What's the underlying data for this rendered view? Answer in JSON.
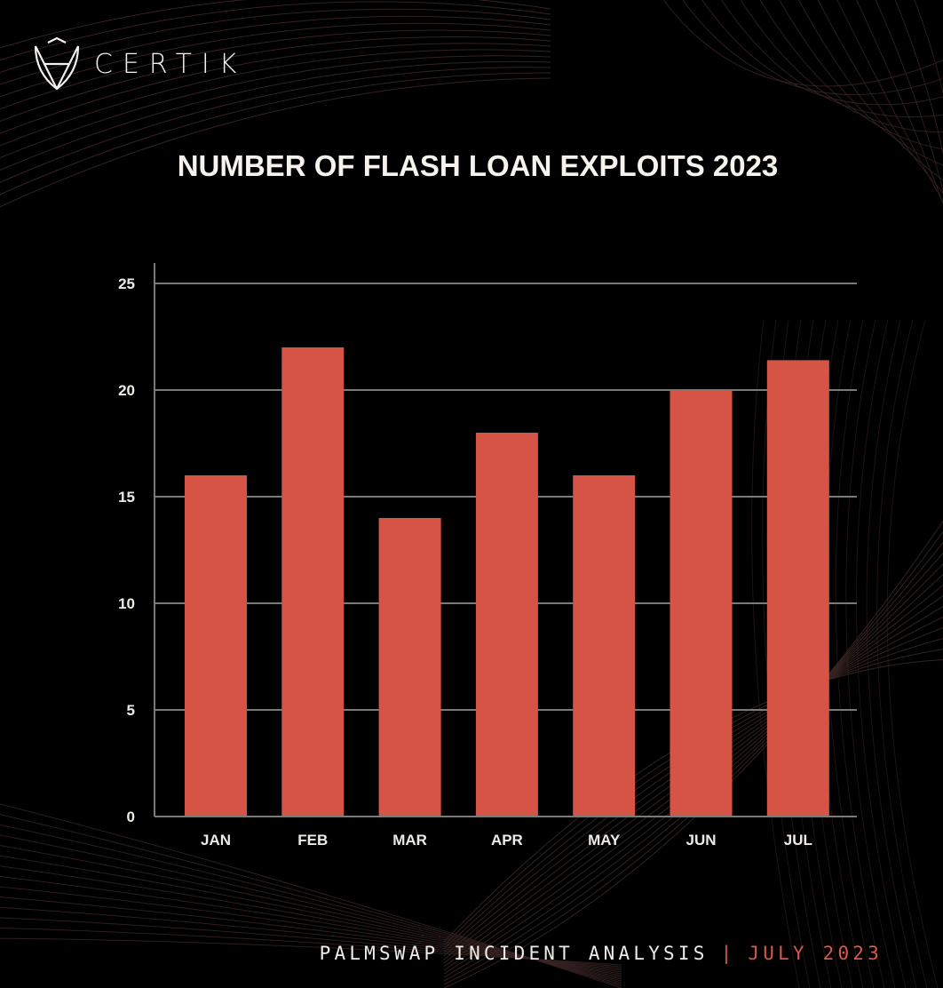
{
  "brand": {
    "name": "CERTIK",
    "logo_icon": "certik-shield-logo-icon"
  },
  "footer": {
    "report": "PALMSWAP INCIDENT ANALYSIS",
    "separator": "|",
    "date": "JULY 2023"
  },
  "colors": {
    "bar": "#d55446",
    "accent": "#d55a4c",
    "grid": "#7a7a7a",
    "background": "#000000",
    "text": "#f2f0ea"
  },
  "chart_data": {
    "type": "bar",
    "title": "NUMBER OF FLASH LOAN EXPLOITS 2023",
    "xlabel": "",
    "ylabel": "",
    "categories": [
      "JAN",
      "FEB",
      "MAR",
      "APR",
      "MAY",
      "JUN",
      "JUL"
    ],
    "values": [
      16,
      22,
      14,
      18,
      16,
      20,
      21.4
    ],
    "ylim": [
      0,
      25
    ],
    "yticks": [
      0,
      5,
      10,
      15,
      20,
      25
    ],
    "grid": true,
    "legend": "none"
  }
}
